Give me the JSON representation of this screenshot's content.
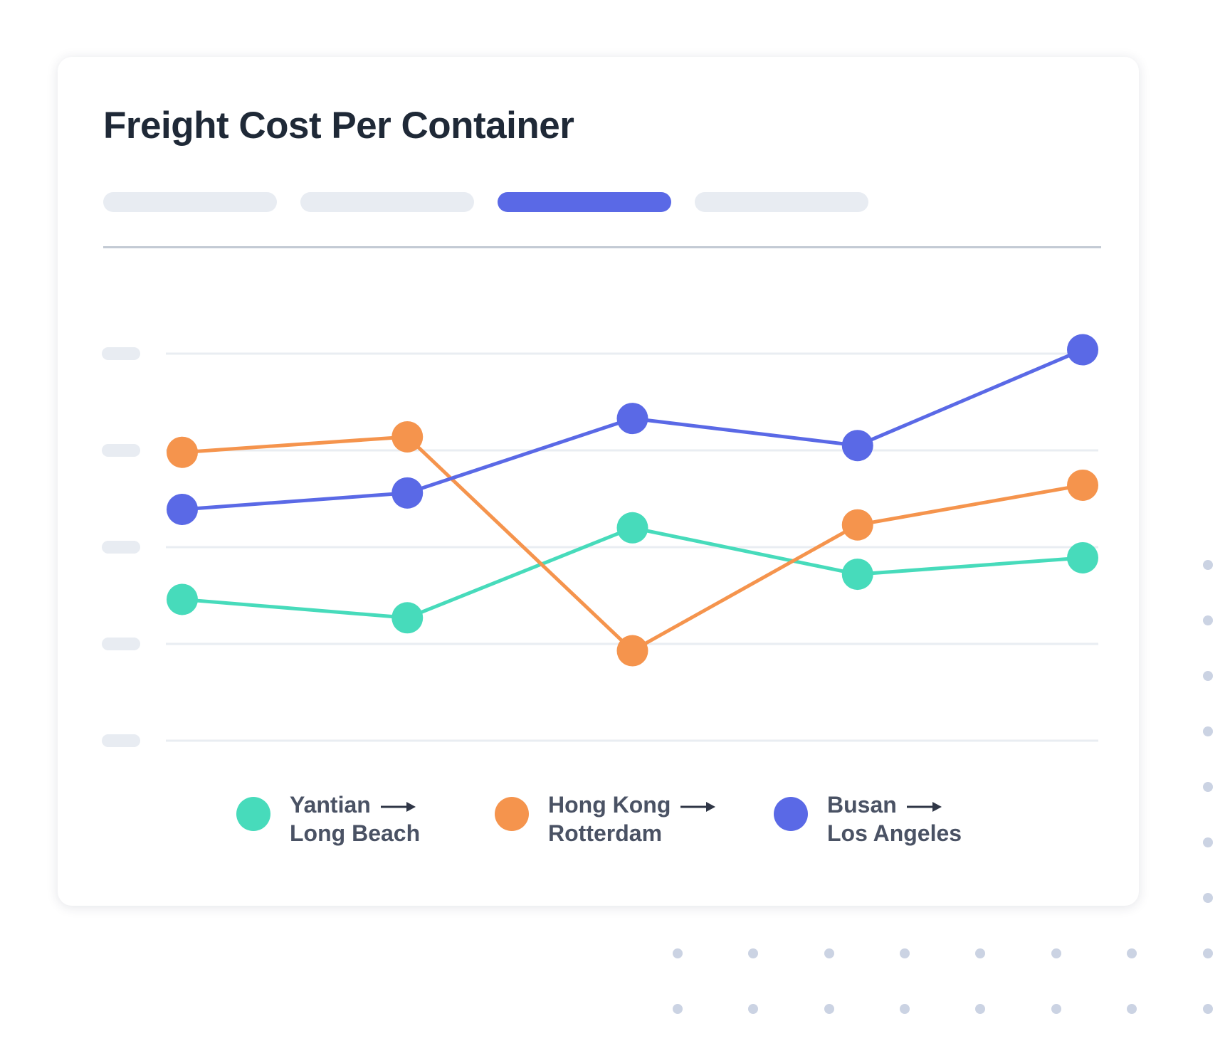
{
  "title": "Freight Cost Per Container",
  "tabs": [
    {
      "label": "",
      "active": false
    },
    {
      "label": "",
      "active": false
    },
    {
      "label": "",
      "active": true
    },
    {
      "label": "",
      "active": false
    }
  ],
  "colors": {
    "teal": "#47dbbb",
    "orange": "#f5944d",
    "blue": "#5a69e6",
    "gridline": "#e9edf2",
    "tick_placeholder": "#e8ecf2",
    "divider": "#c3cad4",
    "dots": "#cbd3e3"
  },
  "chart_data": {
    "type": "line",
    "title": "Freight Cost Per Container",
    "xlabel": "",
    "ylabel": "",
    "x": [
      1,
      2,
      3,
      4,
      5
    ],
    "ylim": [
      0,
      4
    ],
    "yticks": [
      0,
      1,
      2,
      3,
      4
    ],
    "grid": true,
    "legend_position": "bottom",
    "series": [
      {
        "name": "Yantian → Long Beach",
        "origin": "Yantian",
        "destination": "Long Beach",
        "color": "#47dbbb",
        "values": [
          1.46,
          1.27,
          2.2,
          1.72,
          1.89
        ]
      },
      {
        "name": "Hong Kong → Rotterdam",
        "origin": "Hong Kong",
        "destination": "Rotterdam",
        "color": "#f5944d",
        "values": [
          2.98,
          3.14,
          0.93,
          2.23,
          2.64
        ]
      },
      {
        "name": "Busan → Los Angeles",
        "origin": "Busan",
        "destination": "Los Angeles",
        "color": "#5a69e6",
        "values": [
          2.39,
          2.56,
          3.33,
          3.05,
          4.04
        ]
      }
    ]
  }
}
